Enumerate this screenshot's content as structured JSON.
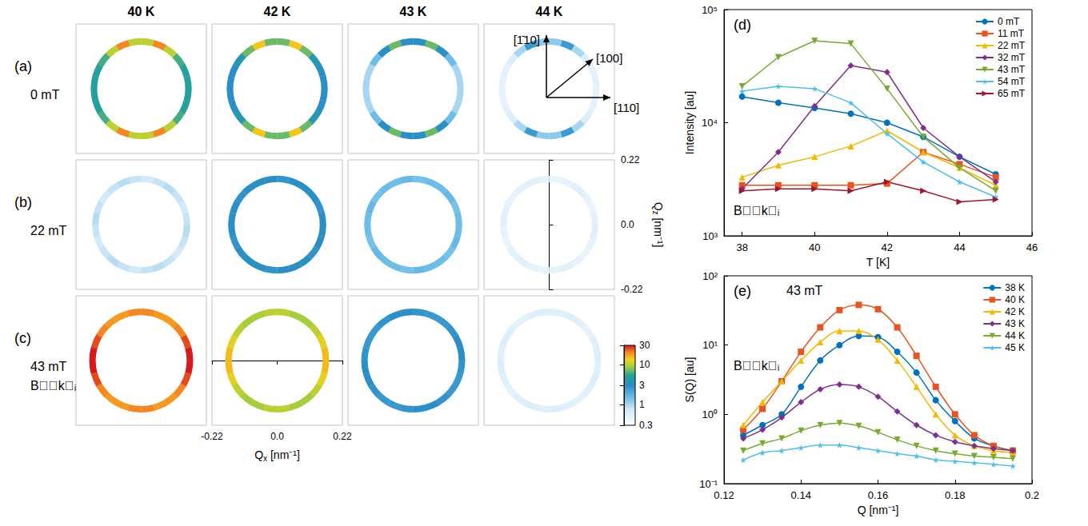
{
  "chart_data": [
    {
      "type": "ring_map",
      "columns": [
        "40 K",
        "42 K",
        "43 K",
        "44 K"
      ],
      "rows": [
        {
          "letter": "(a)",
          "field": "0 mT",
          "ring_q": 0.16,
          "cells": [
            [
              5,
              5,
              6,
              10,
              20,
              10,
              10,
              20,
              10,
              6,
              5,
              5,
              5,
              5,
              6,
              10,
              20,
              10,
              10,
              20,
              10,
              6,
              5,
              5
            ],
            [
              3,
              3,
              4,
              7,
              14,
              7,
              7,
              14,
              7,
              4,
              3,
              3,
              3,
              3,
              4,
              7,
              14,
              7,
              7,
              14,
              7,
              4,
              3,
              3
            ],
            [
              1,
              1,
              1.5,
              3,
              7,
              3,
              3,
              7,
              3,
              1.5,
              1,
              1,
              1,
              1,
              1.5,
              3,
              7,
              3,
              3,
              7,
              3,
              1.5,
              1,
              1
            ],
            [
              0.5,
              0.5,
              0.6,
              1,
              2.5,
              1.2,
              1.2,
              2.5,
              1,
              0.6,
              0.5,
              0.5,
              0.5,
              0.5,
              0.6,
              1,
              2.5,
              1.2,
              1.2,
              2.5,
              1,
              0.6,
              0.5,
              0.5
            ]
          ]
        },
        {
          "letter": "(b)",
          "field": "22 mT",
          "ring_q": 0.155,
          "cells": [
            [
              0.8,
              0.7,
              0.8,
              0.9,
              0.8,
              0.7,
              0.8,
              0.9,
              0.8,
              0.7,
              0.8,
              0.9,
              0.8,
              0.7,
              0.8,
              0.9,
              0.8,
              0.7,
              0.8,
              0.9,
              0.8,
              0.7,
              0.8,
              0.9
            ],
            [
              3,
              2.8,
              3,
              3.2,
              3,
              2.8,
              3,
              3.2,
              3,
              2.8,
              3,
              3.2,
              3,
              2.8,
              3,
              3.2,
              3,
              2.8,
              3,
              3.2,
              3,
              2.8,
              3,
              3.2
            ],
            [
              1.5,
              1.4,
              1.6,
              1.5,
              1.5,
              1.4,
              1.6,
              1.5,
              1.5,
              1.4,
              1.6,
              1.5,
              1.5,
              1.4,
              1.6,
              1.5,
              1.5,
              1.4,
              1.6,
              1.5,
              1.5,
              1.4,
              1.6,
              1.5
            ],
            [
              0.5,
              0.45,
              0.5,
              0.55,
              0.5,
              0.45,
              0.5,
              0.55,
              0.5,
              0.45,
              0.5,
              0.55,
              0.5,
              0.45,
              0.5,
              0.55,
              0.5,
              0.45,
              0.5,
              0.55,
              0.5,
              0.45,
              0.5,
              0.55
            ]
          ]
        },
        {
          "letter": "(c)",
          "field": "43 mT",
          "condition": "B⃗∥k⃗ᵢ",
          "ring_q": 0.165,
          "cells": [
            [
              30,
              25,
              20,
              18,
              18,
              20,
              20,
              18,
              18,
              20,
              25,
              30,
              30,
              25,
              20,
              18,
              18,
              20,
              20,
              18,
              18,
              20,
              25,
              30
            ],
            [
              15,
              12,
              10,
              9,
              9,
              10,
              10,
              9,
              9,
              10,
              12,
              15,
              15,
              12,
              10,
              9,
              9,
              10,
              10,
              9,
              9,
              10,
              12,
              15
            ],
            [
              3,
              3,
              2.8,
              2.6,
              2.6,
              2.8,
              3,
              3,
              2.8,
              2.6,
              2.6,
              2.8,
              3,
              3,
              2.8,
              2.6,
              2.6,
              2.8,
              3,
              3,
              2.8,
              2.6,
              2.6,
              2.8
            ],
            [
              0.6,
              0.55,
              0.5,
              0.55,
              0.6,
              0.55,
              0.6,
              0.55,
              0.5,
              0.55,
              0.6,
              0.55,
              0.6,
              0.55,
              0.5,
              0.55,
              0.6,
              0.55,
              0.6,
              0.55,
              0.5,
              0.55,
              0.6,
              0.55
            ]
          ]
        }
      ],
      "xlim": [
        -0.22,
        0.22
      ],
      "xticks": [
        -0.22,
        {
          "value": 0,
          "label": "0.0"
        },
        0.22
      ],
      "ylim": [
        -0.22,
        0.22
      ],
      "yticks": [
        -0.22,
        {
          "value": 0,
          "label": "0.0"
        },
        0.22
      ],
      "x_label": {
        "symbol": "Q",
        "subscript": "x",
        "unit": "[nm⁻¹]"
      },
      "y_label": {
        "symbol": "Q",
        "subscript": "z",
        "unit": "[nm⁻¹]"
      },
      "directions": [
        "[1̄10]",
        "[100]",
        "[110]"
      ],
      "colorbar": {
        "lim": [
          0.3,
          30
        ],
        "ticks": [
          0.3,
          1,
          3,
          10,
          30
        ],
        "log": true
      }
    },
    {
      "type": "line",
      "letter": "(d)",
      "x_label": "T [K]",
      "y_label": "Intensity [au]",
      "annotation": "B⃗∥k⃗ᵢ",
      "log": "y",
      "grid": false,
      "legend": "top-right",
      "xlim": [
        37.5,
        46
      ],
      "xticks": [
        38,
        40,
        42,
        44,
        46
      ],
      "ylim": [
        1000,
        100000
      ],
      "yticks": [
        {
          "value": 1000,
          "label": "10³"
        },
        {
          "value": 10000,
          "label": "10⁴"
        },
        {
          "value": 100000,
          "label": "10⁵"
        }
      ],
      "x": [
        38,
        39,
        40,
        41,
        42,
        43,
        44,
        45
      ],
      "series": [
        {
          "name": "0 mT",
          "color": "#0072bd",
          "marker": "circle",
          "line_style": "solid",
          "values": [
            17000,
            15000,
            13500,
            12000,
            10000,
            7500,
            5000,
            3500
          ]
        },
        {
          "name": "11 mT",
          "color": "#e8541f",
          "marker": "square",
          "line_style": "solid",
          "values": [
            2800,
            2800,
            2800,
            2800,
            2900,
            5500,
            4300,
            3300
          ]
        },
        {
          "name": "22 mT",
          "color": "#f5b800",
          "marker": "triangle",
          "line_style": "solid",
          "values": [
            3300,
            4200,
            5000,
            6200,
            8500,
            5500,
            4000,
            2800
          ]
        },
        {
          "name": "32 mT",
          "color": "#7e2f8e",
          "marker": "diamond",
          "line_style": "solid",
          "values": [
            2600,
            5500,
            14000,
            32000,
            28000,
            9000,
            5000,
            3000
          ]
        },
        {
          "name": "43 mT",
          "color": "#77ac30",
          "marker": "triangle-down",
          "line_style": "solid",
          "values": [
            21000,
            38000,
            53000,
            50000,
            20000,
            7500,
            4000,
            2500
          ]
        },
        {
          "name": "54 mT",
          "color": "#4dbeee",
          "marker": "star",
          "line_style": "solid",
          "values": [
            19000,
            21000,
            20000,
            15000,
            8000,
            4500,
            3000,
            2200
          ]
        },
        {
          "name": "65 mT",
          "color": "#a2142f",
          "marker": "triangle-right",
          "line_style": "solid",
          "values": [
            2500,
            2600,
            2600,
            2500,
            3000,
            2500,
            2000,
            2100
          ]
        }
      ]
    },
    {
      "type": "line",
      "letter": "(e)",
      "title": "43 mT",
      "x_label": "Q [nm⁻¹]",
      "y_label": "S(Q) [au]",
      "annotation": "B⃗∥k⃗ᵢ",
      "log": "y",
      "grid": false,
      "legend": "top-right",
      "xlim": [
        0.12,
        0.2
      ],
      "xticks": [
        0.12,
        0.14,
        0.16,
        0.18,
        0.2
      ],
      "ylim": [
        0.1,
        100
      ],
      "yticks": [
        {
          "value": 0.1,
          "label": "10⁻¹"
        },
        {
          "value": 1,
          "label": "10⁰"
        },
        {
          "value": 10,
          "label": "10¹"
        },
        {
          "value": 100,
          "label": "10²"
        }
      ],
      "x": [
        0.125,
        0.13,
        0.135,
        0.14,
        0.145,
        0.15,
        0.155,
        0.16,
        0.165,
        0.17,
        0.175,
        0.18,
        0.185,
        0.19,
        0.195
      ],
      "series": [
        {
          "name": "38 K",
          "color": "#0072bd",
          "marker": "circle",
          "line_style": "solid",
          "values": [
            0.5,
            0.7,
            1.0,
            2.5,
            6,
            10,
            13.5,
            13,
            8,
            4,
            1.6,
            0.8,
            0.45,
            0.35,
            0.3
          ]
        },
        {
          "name": "40 K",
          "color": "#e8541f",
          "marker": "square",
          "line_style": "solid",
          "values": [
            0.6,
            1.2,
            3,
            8,
            18,
            32,
            38,
            33,
            18,
            7,
            2.5,
            1.0,
            0.5,
            0.35,
            0.3
          ]
        },
        {
          "name": "42 K",
          "color": "#f5b800",
          "marker": "triangle",
          "line_style": "solid",
          "values": [
            0.7,
            1.5,
            3,
            6,
            11,
            16,
            16,
            12,
            6,
            2.5,
            1.0,
            0.5,
            0.35,
            0.3,
            0.28
          ]
        },
        {
          "name": "43 K",
          "color": "#7e2f8e",
          "marker": "diamond",
          "line_style": "solid",
          "values": [
            0.45,
            0.6,
            0.9,
            1.5,
            2.3,
            2.7,
            2.5,
            1.8,
            1.1,
            0.7,
            0.5,
            0.4,
            0.35,
            0.32,
            0.3
          ]
        },
        {
          "name": "44 K",
          "color": "#77ac30",
          "marker": "triangle-down",
          "line_style": "solid",
          "values": [
            0.3,
            0.38,
            0.45,
            0.58,
            0.7,
            0.75,
            0.68,
            0.55,
            0.43,
            0.35,
            0.3,
            0.27,
            0.25,
            0.24,
            0.23
          ]
        },
        {
          "name": "45 K",
          "color": "#4dbeee",
          "marker": "star",
          "line_style": "solid",
          "values": [
            0.22,
            0.28,
            0.3,
            0.33,
            0.36,
            0.36,
            0.33,
            0.3,
            0.27,
            0.25,
            0.22,
            0.21,
            0.2,
            0.19,
            0.18
          ]
        }
      ]
    }
  ]
}
